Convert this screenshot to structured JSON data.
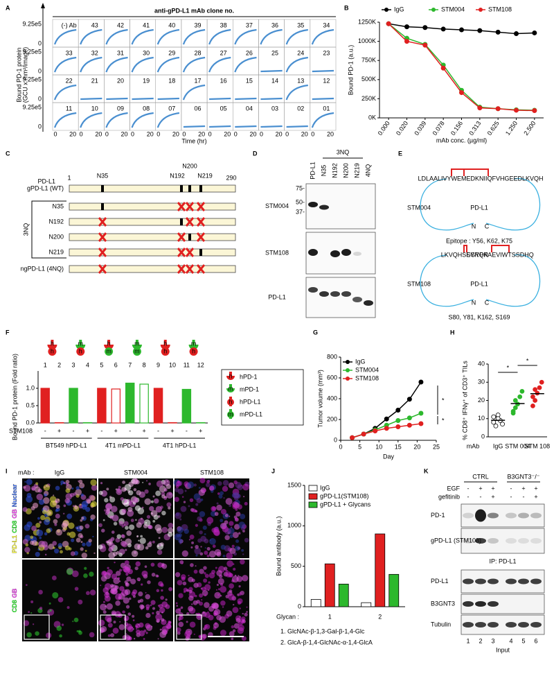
{
  "panel_labels": [
    "A",
    "B",
    "C",
    "D",
    "E",
    "F",
    "G",
    "H",
    "I",
    "J",
    "K"
  ],
  "panel_a": {
    "title": "anti-gPD-L1 mAb clone no.",
    "ylabel": [
      "Bound PD-1 protein",
      "(GCU x mm²/image)"
    ],
    "xlabel": "Time (hr)",
    "y_tick_top": "9.25e5",
    "y_tick_bottom": "0",
    "x_ticks": [
      "0",
      "20"
    ],
    "rows": [
      [
        {
          "label": "(-) Ab",
          "highlight": false
        },
        {
          "label": "43",
          "highlight": false
        },
        {
          "label": "42",
          "highlight": false
        },
        {
          "label": "41",
          "highlight": false
        },
        {
          "label": "40",
          "highlight": false
        },
        {
          "label": "39",
          "highlight": false
        },
        {
          "label": "38",
          "highlight": false
        },
        {
          "label": "37",
          "highlight": false
        },
        {
          "label": "36",
          "highlight": false
        },
        {
          "label": "35",
          "highlight": false
        },
        {
          "label": "34",
          "highlight": false
        }
      ],
      [
        {
          "label": "33",
          "highlight": false
        },
        {
          "label": "32",
          "highlight": false
        },
        {
          "label": "31",
          "highlight": false
        },
        {
          "label": "30",
          "highlight": false
        },
        {
          "label": "29",
          "highlight": false
        },
        {
          "label": "28",
          "highlight": false
        },
        {
          "label": "27",
          "highlight": false
        },
        {
          "label": "26",
          "highlight": false
        },
        {
          "label": "25",
          "highlight": true
        },
        {
          "label": "24",
          "highlight": false
        },
        {
          "label": "23",
          "highlight": true
        }
      ],
      [
        {
          "label": "22",
          "highlight": false
        },
        {
          "label": "21",
          "highlight": true
        },
        {
          "label": "20",
          "highlight": true
        },
        {
          "label": "19",
          "highlight": true
        },
        {
          "label": "18",
          "highlight": true
        },
        {
          "label": "17",
          "highlight": false
        },
        {
          "label": "16",
          "highlight": true
        },
        {
          "label": "15",
          "highlight": true
        },
        {
          "label": "14",
          "highlight": true
        },
        {
          "label": "13",
          "highlight": false
        },
        {
          "label": "12",
          "highlight": true
        }
      ],
      [
        {
          "label": "11",
          "highlight": false
        },
        {
          "label": "10",
          "highlight": false
        },
        {
          "label": "09",
          "highlight": false
        },
        {
          "label": "08",
          "highlight": false
        },
        {
          "label": "07",
          "highlight": false
        },
        {
          "label": "06",
          "highlight": true
        },
        {
          "label": "05",
          "highlight": true
        },
        {
          "label": "04",
          "highlight": true
        },
        {
          "label": "03",
          "highlight": true
        },
        {
          "label": "02",
          "highlight": true
        },
        {
          "label": "01",
          "highlight": false
        }
      ]
    ]
  },
  "panel_c": {
    "protein": "PD-L1",
    "start": 1,
    "end": 290,
    "sites": [
      "N35",
      "N192",
      "N200",
      "N219"
    ],
    "rows": [
      "gPD-L1 (WT)",
      "N35",
      "N192",
      "N200",
      "N219",
      "ngPD-L1 (4NQ)"
    ],
    "group_label": "3NQ"
  },
  "panel_d": {
    "lanes": [
      "PD-L1",
      "N35",
      "N192",
      "N200",
      "N219",
      "4NQ"
    ],
    "group_label": "3NQ",
    "markers": [
      "75-",
      "50-",
      "37-"
    ],
    "rows": [
      "STM004",
      "STM108",
      "PD-L1"
    ]
  },
  "panel_e": {
    "top": {
      "antibody": "STM004",
      "protein": "PD-L1",
      "sequence": [
        "LDLAALIVYWEMEDKNIIQFVHGEEDLKVQH"
      ],
      "epitope": "Epitope : Y56, K62, K75",
      "n": "N",
      "c": "C"
    },
    "bottom": {
      "antibody": "STM108",
      "protein": "PD-L1",
      "sequence": [
        "LKVQHSSYRQR",
        "EGYPKAEVIWTSSDHQ"
      ],
      "epitope": "S80, Y81, K162, S169",
      "n": "N",
      "c": "C"
    }
  },
  "panel_i": {
    "prefix": "mAb :",
    "columns": [
      "IgG",
      "STM004",
      "STM108"
    ],
    "top_channels": [
      {
        "name": "PD-L1",
        "color": "#ffff33"
      },
      {
        "name": "CD8",
        "color": "#33ff33"
      },
      {
        "name": "GB",
        "color": "#ff44ff"
      },
      {
        "name": "Nuclear",
        "color": "#4477ff"
      }
    ],
    "bottom_channels": [
      {
        "name": "CD8",
        "color": "#33ff33"
      },
      {
        "name": "GB",
        "color": "#ff44ff"
      }
    ]
  },
  "panel_k": {
    "groups": [
      "CTRL",
      "B3GNT3⁻/⁻"
    ],
    "treatments": [
      {
        "name": "EGF",
        "signs": [
          "-",
          "+",
          "+",
          "-",
          "+",
          "+"
        ]
      },
      {
        "name": "gefitinib",
        "signs": [
          "-",
          "-",
          "+",
          "-",
          "-",
          "+"
        ]
      }
    ],
    "ip_rows": [
      "PD-1",
      "gPD-L1 (STM108)"
    ],
    "ip_label": "IP: PD-L1",
    "input_rows": [
      "PD-L1",
      "B3GNT3",
      "Tubulin"
    ],
    "lanes": [
      "1",
      "2",
      "3",
      "4",
      "5",
      "6"
    ],
    "input_label": "Input"
  },
  "chart_data": [
    {
      "type": "line",
      "categories": [
        "0.000",
        "0.020",
        "0.039",
        "0.078",
        "0.156",
        "0.313",
        "0.625",
        "1.250",
        "2.500"
      ],
      "series": [
        {
          "name": "IgG",
          "color": "#000000",
          "values": [
            1230000,
            1190000,
            1180000,
            1160000,
            1150000,
            1140000,
            1120000,
            1100000,
            1110000
          ]
        },
        {
          "name": "STM004",
          "color": "#2db82d",
          "values": [
            1230000,
            1040000,
            960000,
            690000,
            360000,
            140000,
            120000,
            105000,
            100000
          ]
        },
        {
          "name": "STM108",
          "color": "#e02020",
          "values": [
            1230000,
            1000000,
            950000,
            650000,
            330000,
            130000,
            120000,
            100000,
            95000
          ]
        }
      ],
      "ylim": [
        0,
        1250000
      ],
      "yticks": [
        {
          "value": 0,
          "label": "0K"
        },
        {
          "value": 250000,
          "label": "250K"
        },
        {
          "value": 500000,
          "label": "500K"
        },
        {
          "value": 750000,
          "label": "750K"
        },
        {
          "value": 1000000,
          "label": "1000K"
        },
        {
          "value": 1250000,
          "label": "1250K"
        }
      ],
      "ylabel": "Bound PD-1 (a.u.)",
      "xlabel": "mAb conc. (µg/ml)",
      "legend": "top"
    },
    {
      "type": "bar",
      "categories": [
        "1",
        "2",
        "3",
        "4",
        "5",
        "6",
        "7",
        "8",
        "9",
        "10",
        "11",
        "12"
      ],
      "values": [
        1,
        0.01,
        1,
        0.01,
        1,
        0.98,
        1.15,
        1.12,
        1,
        0.01,
        0.97,
        0.01
      ],
      "colors": [
        "#e02020",
        "#e02020",
        "#2db82d",
        "#2db82d",
        "#e02020",
        "#e02020",
        "#2db82d",
        "#2db82d",
        "#e02020",
        "#e02020",
        "#2db82d",
        "#2db82d"
      ],
      "filled": [
        true,
        true,
        true,
        true,
        true,
        false,
        true,
        false,
        true,
        true,
        true,
        true
      ],
      "ylim": [
        0,
        1.5
      ],
      "yticks": [
        {
          "value": 0,
          "label": "0.0"
        },
        {
          "value": 0.5,
          "label": "0.5"
        },
        {
          "value": 1,
          "label": "1.0"
        }
      ],
      "ylabel": "Bound PD-1 protein (Fold ratio)",
      "treatment_label": "STM108",
      "treatment": [
        "-",
        "+",
        "-",
        "+",
        "-",
        "+",
        "-",
        "+",
        "-",
        "+",
        "-",
        "+"
      ],
      "groups": [
        "BT549 hPD-L1",
        "4T1 mPD-L1",
        "4T1 hPD-L1"
      ],
      "icons": [
        {
          "receptor": "h",
          "ligand": "h"
        },
        {
          "receptor": "m",
          "ligand": "h"
        },
        {
          "receptor": "h",
          "ligand": "m"
        },
        {
          "receptor": "m",
          "ligand": "m"
        },
        {
          "receptor": "h",
          "ligand": "h"
        },
        {
          "receptor": "m",
          "ligand": "h"
        }
      ],
      "letter_colors": {
        "h": "#e02020",
        "m": "#2db82d"
      },
      "legend": [
        {
          "name": "hPD-1",
          "letter": "h"
        },
        {
          "name": "mPD-1",
          "letter": "m"
        },
        {
          "name": "hPD-L1",
          "letter": "h"
        },
        {
          "name": "mPD-L1",
          "letter": "m"
        }
      ]
    },
    {
      "type": "line",
      "x": [
        3,
        6,
        9,
        12,
        15,
        18,
        21
      ],
      "series": [
        {
          "name": "IgG",
          "color": "#000000",
          "values": [
            25,
            60,
            115,
            205,
            290,
            395,
            560
          ]
        },
        {
          "name": "STM004",
          "color": "#2db82d",
          "values": [
            25,
            60,
            100,
            145,
            190,
            215,
            260
          ]
        },
        {
          "name": "STM108",
          "color": "#e02020",
          "values": [
            25,
            60,
            90,
            115,
            130,
            145,
            160
          ]
        }
      ],
      "xlim": [
        0,
        25
      ],
      "xticks": [
        0,
        5,
        10,
        15,
        20,
        25
      ],
      "ylim": [
        0,
        800
      ],
      "yticks": [
        0,
        200,
        400,
        600,
        800
      ],
      "ylabel": "Tumor volume (mm³)",
      "xlabel": "Day",
      "annotations": [
        "*",
        "*"
      ],
      "legend": "upper left"
    },
    {
      "type": "scatter",
      "categories": [
        "IgG",
        "STM 004",
        "STM 108"
      ],
      "values": [
        [
          8,
          10,
          12,
          9,
          7,
          11,
          6,
          10
        ],
        [
          13,
          16,
          18,
          22,
          25,
          14,
          20
        ],
        [
          17,
          20,
          24,
          27,
          30,
          22,
          26
        ]
      ],
      "means": [
        9.1,
        18.3,
        23.7
      ],
      "colors": [
        "#ffffff",
        "#2db82d",
        "#e02020"
      ],
      "ylim": [
        0,
        40
      ],
      "yticks": [
        0,
        10,
        20,
        30,
        40
      ],
      "ylabel": "% CD8⁺ IFNγ⁺ of CD3⁺ TILs",
      "xlabel": "mAb",
      "annotations": [
        "*",
        "*"
      ]
    },
    {
      "type": "bar",
      "categories": [
        "1",
        "2"
      ],
      "series": [
        {
          "name": "IgG",
          "color": "#ffffff",
          "values": [
            90,
            50
          ]
        },
        {
          "name": "gPD-L1(STM108)",
          "color": "#e02020",
          "values": [
            530,
            900
          ]
        },
        {
          "name": "gPD-L1 + Glycans",
          "color": "#2db82d",
          "values": [
            280,
            400
          ]
        }
      ],
      "ylim": [
        0,
        1500
      ],
      "yticks": [
        0,
        500,
        1000,
        1500
      ],
      "ylabel": "Bound antibody (a.u.)",
      "xlabel": "Glycan :",
      "legend": "upper left",
      "notes": [
        "1. GlcNAc-β-1,3-Gal-β-1,4-Glc",
        "2. GlcA-β-1,4-GlcNAc-α-1,4-GlcA"
      ]
    }
  ]
}
